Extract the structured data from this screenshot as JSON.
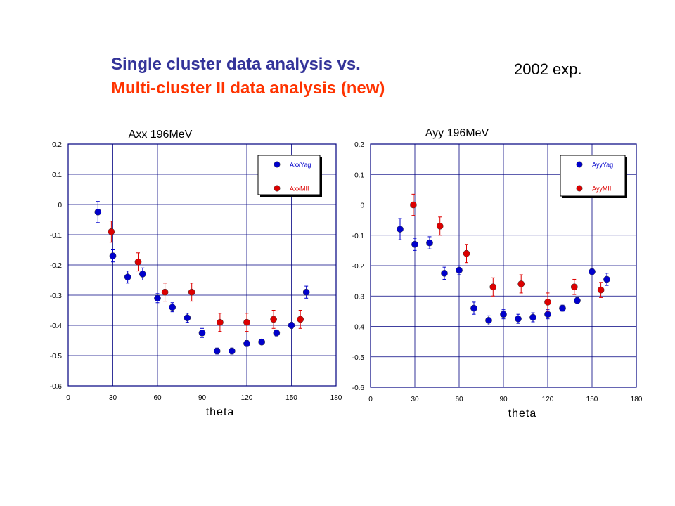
{
  "slide": {
    "title_line1": "Single cluster data analysis vs.",
    "title_line2": "Multi-cluster II data analysis (new)",
    "exp_label": "2002 exp."
  },
  "colors": {
    "title1": "#333399",
    "title2": "#ff3300",
    "series_blue": "#0000cc",
    "series_red": "#dd0000",
    "grid": "#000080"
  },
  "chart_data": [
    {
      "type": "scatter",
      "title": "Axx 196MeV",
      "xlabel": "theta",
      "ylabel": "",
      "xlim": [
        0,
        180
      ],
      "ylim": [
        -0.6,
        0.2
      ],
      "xticks": [
        0,
        30,
        60,
        90,
        120,
        150,
        180
      ],
      "yticks": [
        0.2,
        0.1,
        0,
        -0.1,
        -0.2,
        -0.3,
        -0.4,
        -0.5,
        -0.6
      ],
      "ytick_labels": [
        "0.2",
        "0.1",
        "0",
        "-0.1",
        "-0.2",
        "-0.3",
        "-0.4",
        "-0.5",
        "-0.6"
      ],
      "grid": true,
      "legend_position": "top-right",
      "series": [
        {
          "name": "AxxYag",
          "color": "#0000cc",
          "points": [
            {
              "x": 20,
              "y": -0.025,
              "err": 0.035
            },
            {
              "x": 30,
              "y": -0.17,
              "err": 0.02
            },
            {
              "x": 40,
              "y": -0.24,
              "err": 0.02
            },
            {
              "x": 50,
              "y": -0.23,
              "err": 0.02
            },
            {
              "x": 60,
              "y": -0.31,
              "err": 0.015
            },
            {
              "x": 70,
              "y": -0.34,
              "err": 0.015
            },
            {
              "x": 80,
              "y": -0.375,
              "err": 0.015
            },
            {
              "x": 90,
              "y": -0.425,
              "err": 0.015
            },
            {
              "x": 100,
              "y": -0.485,
              "err": 0.01
            },
            {
              "x": 110,
              "y": -0.485,
              "err": 0.01
            },
            {
              "x": 120,
              "y": -0.46,
              "err": 0.01
            },
            {
              "x": 130,
              "y": -0.455,
              "err": 0.008
            },
            {
              "x": 140,
              "y": -0.425,
              "err": 0.01
            },
            {
              "x": 150,
              "y": -0.4,
              "err": 0.01
            },
            {
              "x": 160,
              "y": -0.29,
              "err": 0.02
            }
          ]
        },
        {
          "name": "AxxMII",
          "color": "#dd0000",
          "points": [
            {
              "x": 29,
              "y": -0.09,
              "err": 0.035
            },
            {
              "x": 47,
              "y": -0.19,
              "err": 0.03
            },
            {
              "x": 65,
              "y": -0.29,
              "err": 0.03
            },
            {
              "x": 83,
              "y": -0.29,
              "err": 0.03
            },
            {
              "x": 102,
              "y": -0.39,
              "err": 0.03
            },
            {
              "x": 120,
              "y": -0.39,
              "err": 0.03
            },
            {
              "x": 138,
              "y": -0.38,
              "err": 0.03
            },
            {
              "x": 156,
              "y": -0.38,
              "err": 0.03
            }
          ]
        }
      ]
    },
    {
      "type": "scatter",
      "title": "Ayy 196MeV",
      "xlabel": "theta",
      "ylabel": "",
      "xlim": [
        0,
        180
      ],
      "ylim": [
        -0.6,
        0.2
      ],
      "xticks": [
        0,
        30,
        60,
        90,
        120,
        150,
        180
      ],
      "yticks": [
        0.2,
        0.1,
        0,
        -0.1,
        -0.2,
        -0.3,
        -0.4,
        -0.5,
        -0.6
      ],
      "ytick_labels": [
        "0.2",
        "0.1",
        "0",
        "-0.1",
        "-0.2",
        "-0.3",
        "-0.4",
        "-0.5",
        "-0.6"
      ],
      "grid": true,
      "legend_position": "top-right",
      "series": [
        {
          "name": "AyyYag",
          "color": "#0000cc",
          "points": [
            {
              "x": 20,
              "y": -0.08,
              "err": 0.035
            },
            {
              "x": 30,
              "y": -0.13,
              "err": 0.02
            },
            {
              "x": 40,
              "y": -0.125,
              "err": 0.02
            },
            {
              "x": 50,
              "y": -0.225,
              "err": 0.02
            },
            {
              "x": 60,
              "y": -0.215,
              "err": 0.015
            },
            {
              "x": 70,
              "y": -0.34,
              "err": 0.02
            },
            {
              "x": 80,
              "y": -0.38,
              "err": 0.015
            },
            {
              "x": 90,
              "y": -0.36,
              "err": 0.015
            },
            {
              "x": 100,
              "y": -0.375,
              "err": 0.015
            },
            {
              "x": 110,
              "y": -0.37,
              "err": 0.015
            },
            {
              "x": 120,
              "y": -0.36,
              "err": 0.015
            },
            {
              "x": 130,
              "y": -0.34,
              "err": 0.01
            },
            {
              "x": 140,
              "y": -0.315,
              "err": 0.01
            },
            {
              "x": 150,
              "y": -0.22,
              "err": 0.01
            },
            {
              "x": 160,
              "y": -0.245,
              "err": 0.02
            }
          ]
        },
        {
          "name": "AyyMII",
          "color": "#dd0000",
          "points": [
            {
              "x": 29,
              "y": 0.0,
              "err": 0.035
            },
            {
              "x": 47,
              "y": -0.07,
              "err": 0.03
            },
            {
              "x": 65,
              "y": -0.16,
              "err": 0.03
            },
            {
              "x": 83,
              "y": -0.27,
              "err": 0.03
            },
            {
              "x": 102,
              "y": -0.26,
              "err": 0.03
            },
            {
              "x": 120,
              "y": -0.32,
              "err": 0.03
            },
            {
              "x": 138,
              "y": -0.27,
              "err": 0.025
            },
            {
              "x": 156,
              "y": -0.28,
              "err": 0.025
            }
          ]
        }
      ]
    }
  ]
}
